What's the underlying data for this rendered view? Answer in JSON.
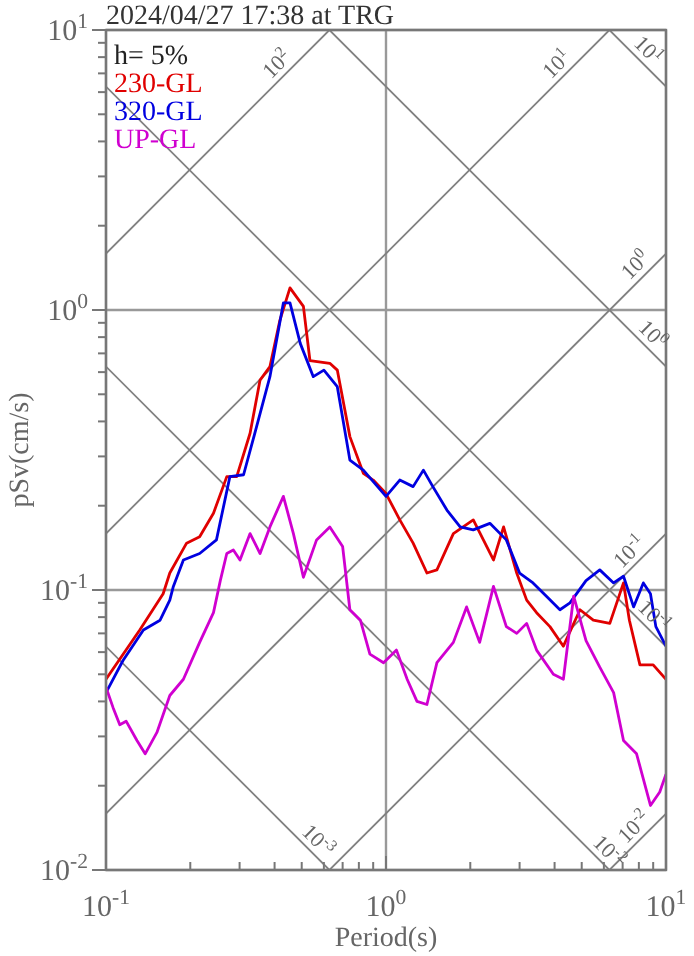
{
  "chart_data": {
    "type": "line",
    "title": "2024/04/27 17:38 at TRG",
    "xlabel": "Period(s)",
    "ylabel": "pSv(cm/s)",
    "legend_title": "h= 5%",
    "legend": "top left",
    "log": "xy",
    "grid": true,
    "xlim": [
      0.1,
      10
    ],
    "ylim": [
      0.01,
      10
    ],
    "xticks": [
      {
        "value": 0.1,
        "label": "10$^{-1}$"
      },
      {
        "value": 0.2,
        "label": null
      },
      {
        "value": 0.3,
        "label": null
      },
      {
        "value": 0.4,
        "label": null
      },
      {
        "value": 0.5,
        "label": null
      },
      {
        "value": 0.6,
        "label": null
      },
      {
        "value": 0.7,
        "label": null
      },
      {
        "value": 0.8,
        "label": null
      },
      {
        "value": 0.9,
        "label": null
      },
      {
        "value": 1,
        "label": "10$^{0}$"
      },
      {
        "value": 2,
        "label": null
      },
      {
        "value": 3,
        "label": null
      },
      {
        "value": 4,
        "label": null
      },
      {
        "value": 5,
        "label": null
      },
      {
        "value": 6,
        "label": null
      },
      {
        "value": 7,
        "label": null
      },
      {
        "value": 8,
        "label": null
      },
      {
        "value": 9,
        "label": null
      },
      {
        "value": 10,
        "label": "10$^{1}$"
      }
    ],
    "yticks": [
      {
        "value": 0.01,
        "label": "10$^{-2}$"
      },
      {
        "value": 0.02,
        "label": null
      },
      {
        "value": 0.03,
        "label": null
      },
      {
        "value": 0.04,
        "label": null
      },
      {
        "value": 0.05,
        "label": null
      },
      {
        "value": 0.06,
        "label": null
      },
      {
        "value": 0.07,
        "label": null
      },
      {
        "value": 0.08,
        "label": null
      },
      {
        "value": 0.09,
        "label": null
      },
      {
        "value": 0.1,
        "label": "10$^{-1}$"
      },
      {
        "value": 0.2,
        "label": null
      },
      {
        "value": 0.3,
        "label": null
      },
      {
        "value": 0.4,
        "label": null
      },
      {
        "value": 0.5,
        "label": null
      },
      {
        "value": 0.6,
        "label": null
      },
      {
        "value": 0.7,
        "label": null
      },
      {
        "value": 0.8,
        "label": null
      },
      {
        "value": 0.9,
        "label": null
      },
      {
        "value": 1,
        "label": "10$^{0}$"
      },
      {
        "value": 2,
        "label": null
      },
      {
        "value": 3,
        "label": null
      },
      {
        "value": 4,
        "label": null
      },
      {
        "value": 5,
        "label": null
      },
      {
        "value": 6,
        "label": null
      },
      {
        "value": 7,
        "label": null
      },
      {
        "value": 8,
        "label": null
      },
      {
        "value": 9,
        "label": null
      },
      {
        "value": 10,
        "label": "10$^{1}$"
      }
    ],
    "series": [
      {
        "color": "#808080",
        "x": [
          0.1,
          0.628
        ],
        "values": [
          1.59,
          10
        ]
      },
      {
        "color": "#808080",
        "x": [
          0.1,
          6.28
        ],
        "values": [
          0.159,
          10
        ]
      },
      {
        "color": "#808080",
        "x": [
          0.1,
          10
        ],
        "values": [
          0.0159,
          1.59
        ]
      },
      {
        "color": "#808080",
        "x": [
          0.628,
          10
        ],
        "values": [
          0.01,
          0.159
        ]
      },
      {
        "color": "#808080",
        "x": [
          6.28,
          10
        ],
        "values": [
          0.01,
          0.0159
        ]
      },
      {
        "color": "#808080",
        "x": [
          6.28,
          10
        ],
        "values": [
          10,
          6.28
        ]
      },
      {
        "color": "#808080",
        "x": [
          0.628,
          10
        ],
        "values": [
          10,
          0.628
        ]
      },
      {
        "color": "#808080",
        "x": [
          0.1,
          10
        ],
        "values": [
          6.28,
          0.0628
        ]
      },
      {
        "color": "#808080",
        "x": [
          0.1,
          6.28
        ],
        "values": [
          0.628,
          0.01
        ]
      },
      {
        "color": "#808080",
        "x": [
          0.1,
          0.628
        ],
        "values": [
          0.0628,
          0.01
        ]
      },
      {
        "name": "230-GL",
        "color": "#e00000",
        "x": [
          0.1,
          0.132,
          0.16,
          0.169,
          0.194,
          0.216,
          0.242,
          0.27,
          0.293,
          0.327,
          0.355,
          0.385,
          0.418,
          0.454,
          0.507,
          0.535,
          0.63,
          0.67,
          0.743,
          0.83,
          0.9,
          1.0,
          1.12,
          1.25,
          1.4,
          1.52,
          1.74,
          2.05,
          2.42,
          2.63,
          2.93,
          3.18,
          3.45,
          3.85,
          4.3,
          4.93,
          5.5,
          6.3,
          7.05,
          7.4,
          8.07,
          9.0,
          10
        ],
        "values": [
          0.048,
          0.072,
          0.097,
          0.115,
          0.147,
          0.155,
          0.188,
          0.254,
          0.254,
          0.363,
          0.562,
          0.628,
          0.92,
          1.2,
          1.03,
          0.66,
          0.645,
          0.61,
          0.353,
          0.261,
          0.247,
          0.221,
          0.178,
          0.147,
          0.115,
          0.118,
          0.159,
          0.178,
          0.128,
          0.168,
          0.115,
          0.092,
          0.083,
          0.074,
          0.063,
          0.085,
          0.078,
          0.076,
          0.106,
          0.078,
          0.054,
          0.054,
          0.048
        ]
      },
      {
        "name": "320-GL",
        "color": "#0000e0",
        "x": [
          0.1,
          0.115,
          0.136,
          0.156,
          0.169,
          0.174,
          0.189,
          0.216,
          0.248,
          0.277,
          0.31,
          0.345,
          0.385,
          0.43,
          0.454,
          0.494,
          0.55,
          0.6,
          0.67,
          0.743,
          0.83,
          1.0,
          1.12,
          1.25,
          1.36,
          1.47,
          1.65,
          1.84,
          2.05,
          2.35,
          2.69,
          3.0,
          3.35,
          3.74,
          4.18,
          4.54,
          5.18,
          5.8,
          6.5,
          7.05,
          7.66,
          8.3,
          8.8,
          9.2,
          10
        ],
        "values": [
          0.043,
          0.056,
          0.072,
          0.078,
          0.092,
          0.103,
          0.128,
          0.135,
          0.151,
          0.254,
          0.258,
          0.383,
          0.578,
          1.06,
          1.06,
          0.76,
          0.578,
          0.61,
          0.532,
          0.291,
          0.268,
          0.216,
          0.247,
          0.234,
          0.268,
          0.234,
          0.193,
          0.168,
          0.164,
          0.173,
          0.151,
          0.115,
          0.106,
          0.095,
          0.085,
          0.09,
          0.108,
          0.118,
          0.106,
          0.112,
          0.087,
          0.106,
          0.097,
          0.074,
          0.063
        ]
      },
      {
        "name": "UP-GL",
        "color": "#d000d0",
        "x": [
          0.1,
          0.106,
          0.112,
          0.118,
          0.129,
          0.138,
          0.152,
          0.169,
          0.189,
          0.216,
          0.242,
          0.256,
          0.27,
          0.285,
          0.301,
          0.327,
          0.355,
          0.385,
          0.43,
          0.467,
          0.507,
          0.565,
          0.63,
          0.7,
          0.743,
          0.81,
          0.876,
          0.98,
          1.09,
          1.19,
          1.29,
          1.4,
          1.52,
          1.74,
          1.94,
          2.16,
          2.42,
          2.69,
          2.93,
          3.18,
          3.45,
          3.96,
          4.3,
          4.68,
          5.18,
          5.8,
          6.5,
          7.05,
          7.85,
          8.8,
          9.5,
          10
        ],
        "values": [
          0.045,
          0.038,
          0.033,
          0.034,
          0.029,
          0.026,
          0.031,
          0.042,
          0.048,
          0.065,
          0.083,
          0.108,
          0.135,
          0.139,
          0.128,
          0.159,
          0.135,
          0.168,
          0.216,
          0.159,
          0.111,
          0.151,
          0.168,
          0.143,
          0.085,
          0.078,
          0.059,
          0.055,
          0.061,
          0.048,
          0.04,
          0.039,
          0.055,
          0.065,
          0.087,
          0.065,
          0.103,
          0.074,
          0.07,
          0.076,
          0.061,
          0.05,
          0.048,
          0.095,
          0.066,
          0.053,
          0.043,
          0.029,
          0.026,
          0.017,
          0.019,
          0.022
        ]
      }
    ],
    "annotations": [
      {
        "text": "10$^{2}$",
        "x": 0.44,
        "y": 7.0
      },
      {
        "text": "10$^{1}$",
        "x": 4.4,
        "y": 7.0
      },
      {
        "text": "10$^{1}$",
        "x": 8.0,
        "y": 7.85
      },
      {
        "text": "10$^{0}$",
        "x": 8.4,
        "y": 1.34
      },
      {
        "text": "10$^{0}$",
        "x": 8.3,
        "y": 0.757
      },
      {
        "text": "10$^{-1}$",
        "x": 8.0,
        "y": 0.127
      },
      {
        "text": "10$^{-1}$",
        "x": 8.4,
        "y": 0.0748
      },
      {
        "text": "10$^{-2}$",
        "x": 8.3,
        "y": 0.0132
      },
      {
        "text": "10$^{-2}$",
        "x": 5.8,
        "y": 0.0108
      },
      {
        "text": "10$^{-3}$",
        "x": 0.53,
        "y": 0.0118
      }
    ]
  }
}
